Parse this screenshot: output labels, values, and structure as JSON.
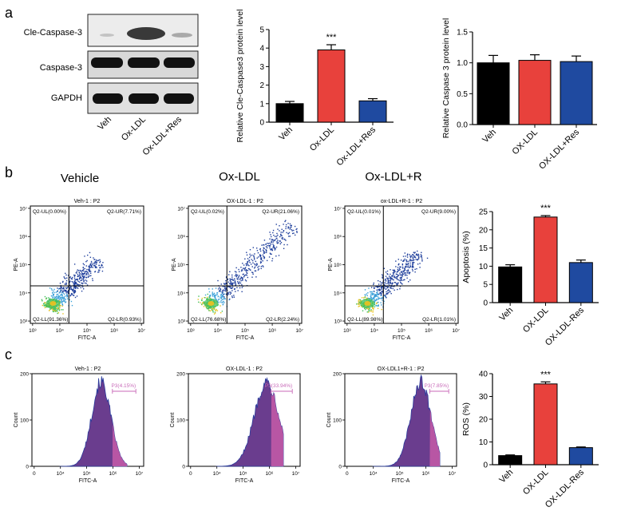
{
  "panel_labels": {
    "a": "a",
    "b": "b",
    "c": "c"
  },
  "western_blot": {
    "band_labels": [
      "Cle-Caspase-3",
      "Caspase-3",
      "GAPDH"
    ],
    "lane_labels": [
      "Veh",
      "Ox-LDL",
      "Ox-LDL+Res"
    ]
  },
  "column_titles": [
    "Vehicle",
    "Ox-LDL",
    "Ox-LDL+R"
  ],
  "flow_plots": [
    {
      "title": "Veh-1 : P2",
      "ul": "Q2-UL(0.00%)",
      "ur": "Q2-UR(7.71%)",
      "ll": "Q2-LL(91.36%)",
      "lr": "Q2-LR(0.93%)"
    },
    {
      "title": "OX-LDL-1 : P2",
      "ul": "Q2-UL(0.02%)",
      "ur": "Q2-UR(21.06%)",
      "ll": "Q2-LL(76.68%)",
      "lr": "Q2-LR(2.24%)"
    },
    {
      "title": "ox-LDL+R-1 : P2",
      "ul": "Q2-UL(0.01%)",
      "ur": "Q2-UR(9.00%)",
      "ll": "Q2-LL(89.98%)",
      "lr": "Q2-LR(1.01%)"
    }
  ],
  "flow_axes": {
    "xlabel": "FITC-A",
    "ylabel": "PE-A",
    "ticks": [
      "10³",
      "10⁴",
      "10⁵",
      "10⁶",
      "10⁷"
    ]
  },
  "hist_plots": [
    {
      "title": "Veh-1 : P2",
      "gate": "P3(4.15%)"
    },
    {
      "title": "OX-LDL-1 : P2",
      "gate": "P3(33.94%)"
    },
    {
      "title": "OX-LDL1+R-1 : P2",
      "gate": "P3(7.85%)"
    }
  ],
  "hist_axes": {
    "xlabel": "FITC-A",
    "ylabel": "Count",
    "xticks": [
      "0",
      "10⁴",
      "10⁵",
      "10⁶",
      "10⁷"
    ],
    "yticks": [
      "0",
      "100",
      "200"
    ]
  },
  "colors": {
    "veh": "#000000",
    "oxldl": "#e8413c",
    "res": "#1f4aa0",
    "density": "#1f3f9c",
    "hist_fill": "#6a3d8e",
    "hist_pink": "#c65aa8",
    "gate": "#c86ab8"
  },
  "chart_data": [
    {
      "id": "cle",
      "type": "bar",
      "title": "",
      "categories": [
        "Veh",
        "Ox-LDL",
        "Ox-LDL+Res"
      ],
      "values": [
        1.0,
        3.9,
        1.15
      ],
      "errors": [
        0.12,
        0.28,
        0.12
      ],
      "ylabel": "Relative Cle-Caspase3 protein level",
      "ylim": [
        0,
        5
      ],
      "yticks": [
        0,
        1,
        2,
        3,
        4,
        5
      ],
      "annotations": [
        {
          "category": "Ox-LDL",
          "text": "***"
        }
      ]
    },
    {
      "id": "cas",
      "type": "bar",
      "title": "",
      "categories": [
        "Veh",
        "OX-LDL",
        "OX-LDL+Res"
      ],
      "values": [
        1.0,
        1.04,
        1.02
      ],
      "errors": [
        0.12,
        0.09,
        0.09
      ],
      "ylabel": "Relative Caspase 3 protein level",
      "ylim": [
        0,
        1.5
      ],
      "yticks": [
        0.0,
        0.5,
        1.0,
        1.5
      ],
      "annotations": []
    },
    {
      "id": "apo",
      "type": "bar",
      "title": "",
      "categories": [
        "Veh",
        "OX-LDL",
        "OX-LDL-Res"
      ],
      "values": [
        9.8,
        23.5,
        11.0
      ],
      "errors": [
        0.6,
        0.4,
        0.7
      ],
      "ylabel": "Apoptosis (%)",
      "ylim": [
        0,
        25
      ],
      "yticks": [
        0,
        5,
        10,
        15,
        20,
        25
      ],
      "annotations": [
        {
          "category": "OX-LDL",
          "text": "***"
        }
      ]
    },
    {
      "id": "ros",
      "type": "bar",
      "title": "",
      "categories": [
        "Veh",
        "OX-LDL",
        "OX-LDL-Res"
      ],
      "values": [
        4.0,
        35.5,
        7.5
      ],
      "errors": [
        0.3,
        0.9,
        0.3
      ],
      "ylabel": "ROS (%)",
      "ylim": [
        0,
        40
      ],
      "yticks": [
        0,
        10,
        20,
        30,
        40
      ],
      "annotations": [
        {
          "category": "OX-LDL",
          "text": "***"
        }
      ]
    }
  ]
}
